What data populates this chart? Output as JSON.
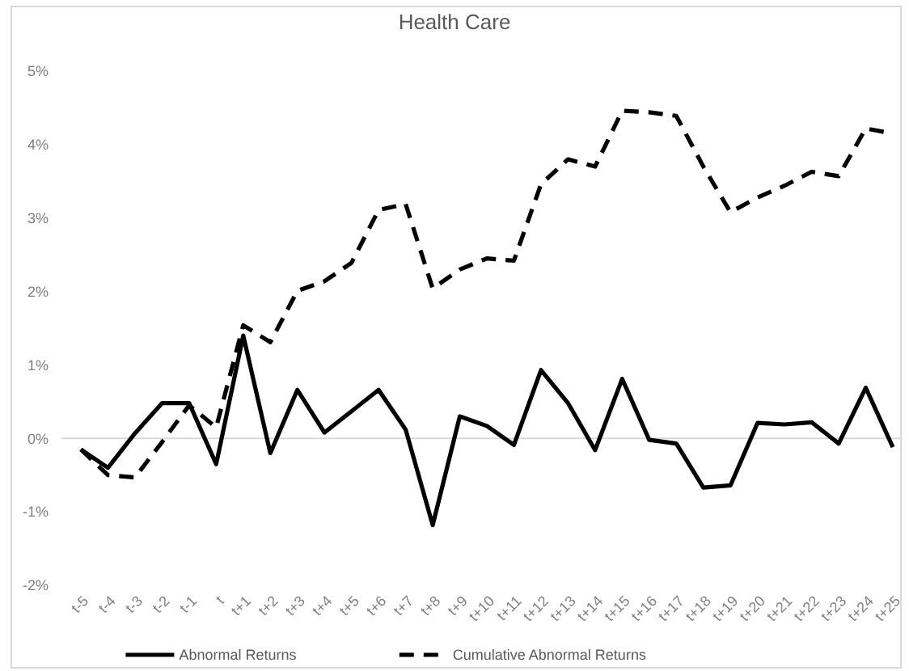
{
  "chart_data": {
    "type": "line",
    "title": "Health Care",
    "categories": [
      "t-5",
      "t-4",
      "t-3",
      "t-2",
      "t-1",
      "t",
      "t+1",
      "t+2",
      "t+3",
      "t+4",
      "t+5",
      "t+6",
      "t+7",
      "t+8",
      "t+9",
      "t+10",
      "t+11",
      "t+12",
      "t+13",
      "t+14",
      "t+15",
      "t+16",
      "t+17",
      "t+18",
      "t+19",
      "t+20",
      "t+21",
      "t+22",
      "t+23",
      "t+24",
      "t+25"
    ],
    "series": [
      {
        "name": "Abnormal Returns",
        "color": "#000000",
        "line_style": "solid",
        "values": [
          -0.15,
          -0.4,
          0.07,
          0.48,
          0.48,
          -0.35,
          1.4,
          -0.2,
          0.66,
          0.08,
          0.37,
          0.66,
          0.12,
          -1.18,
          0.3,
          0.17,
          -0.09,
          0.93,
          0.48,
          -0.16,
          0.81,
          -0.02,
          -0.07,
          -0.67,
          -0.64,
          0.21,
          0.19,
          0.22,
          -0.07,
          0.69,
          -0.12
        ]
      },
      {
        "name": "Cumulative Abnormal Returns",
        "color": "#000000",
        "line_style": "dashed",
        "values": [
          -0.15,
          -0.5,
          -0.53,
          -0.05,
          0.45,
          0.15,
          1.54,
          1.31,
          2.01,
          2.14,
          2.39,
          3.11,
          3.19,
          2.04,
          2.3,
          2.45,
          2.42,
          3.46,
          3.8,
          3.7,
          4.46,
          4.44,
          4.39,
          3.7,
          3.08,
          3.28,
          3.44,
          3.63,
          3.57,
          4.22,
          4.15
        ]
      }
    ],
    "ylim": [
      -2,
      5
    ],
    "yticks": [
      {
        "value": -2,
        "label": "-2%"
      },
      {
        "value": -1,
        "label": "-1%"
      },
      {
        "value": 0,
        "label": "0%"
      },
      {
        "value": 1,
        "label": "1%"
      },
      {
        "value": 2,
        "label": "2%"
      },
      {
        "value": 3,
        "label": "3%"
      },
      {
        "value": 4,
        "label": "4%"
      },
      {
        "value": 5,
        "label": "5%"
      }
    ],
    "ref_lines": [
      {
        "axis": "y",
        "value": 0,
        "color": "#d9d9d9"
      }
    ],
    "grid": false,
    "legend": "bottom",
    "marker": "none"
  }
}
